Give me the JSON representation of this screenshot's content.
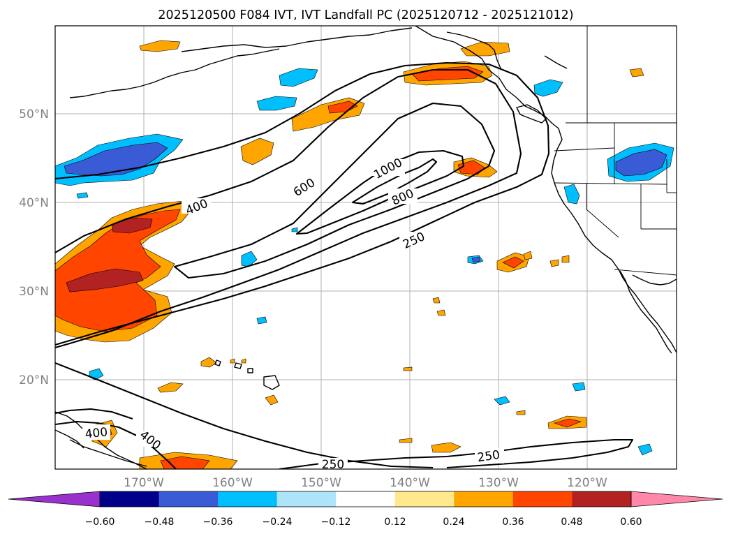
{
  "title": "2025120500 F084 IVT, IVT Landfall PC (2025120712 - 2025121012)",
  "map": {
    "lat_labels": [
      "50°N",
      "40°N",
      "30°N",
      "20°N"
    ],
    "lon_labels": [
      "170°W",
      "160°W",
      "150°W",
      "140°W",
      "130°W",
      "120°W"
    ],
    "ivt_contour_labels": [
      "1000",
      "800",
      "600",
      "400",
      "400",
      "400",
      "250",
      "250",
      "250"
    ],
    "gridlines": true
  },
  "colorbar": {
    "tick_labels": [
      "−0.60",
      "−0.48",
      "−0.36",
      "−0.24",
      "−0.12",
      "0.12",
      "0.24",
      "0.36",
      "0.48",
      "0.60"
    ],
    "levels": [
      -0.6,
      -0.48,
      -0.36,
      -0.24,
      -0.12,
      0.12,
      0.24,
      0.36,
      0.48,
      0.6
    ],
    "colors": [
      "#9932cc",
      "#00008b",
      "#3a5bd6",
      "#00bfff",
      "#ade4fa",
      "#ffffff",
      "#ffe98c",
      "#ffa500",
      "#ff4500",
      "#b22222",
      "#ff88aa"
    ]
  }
}
